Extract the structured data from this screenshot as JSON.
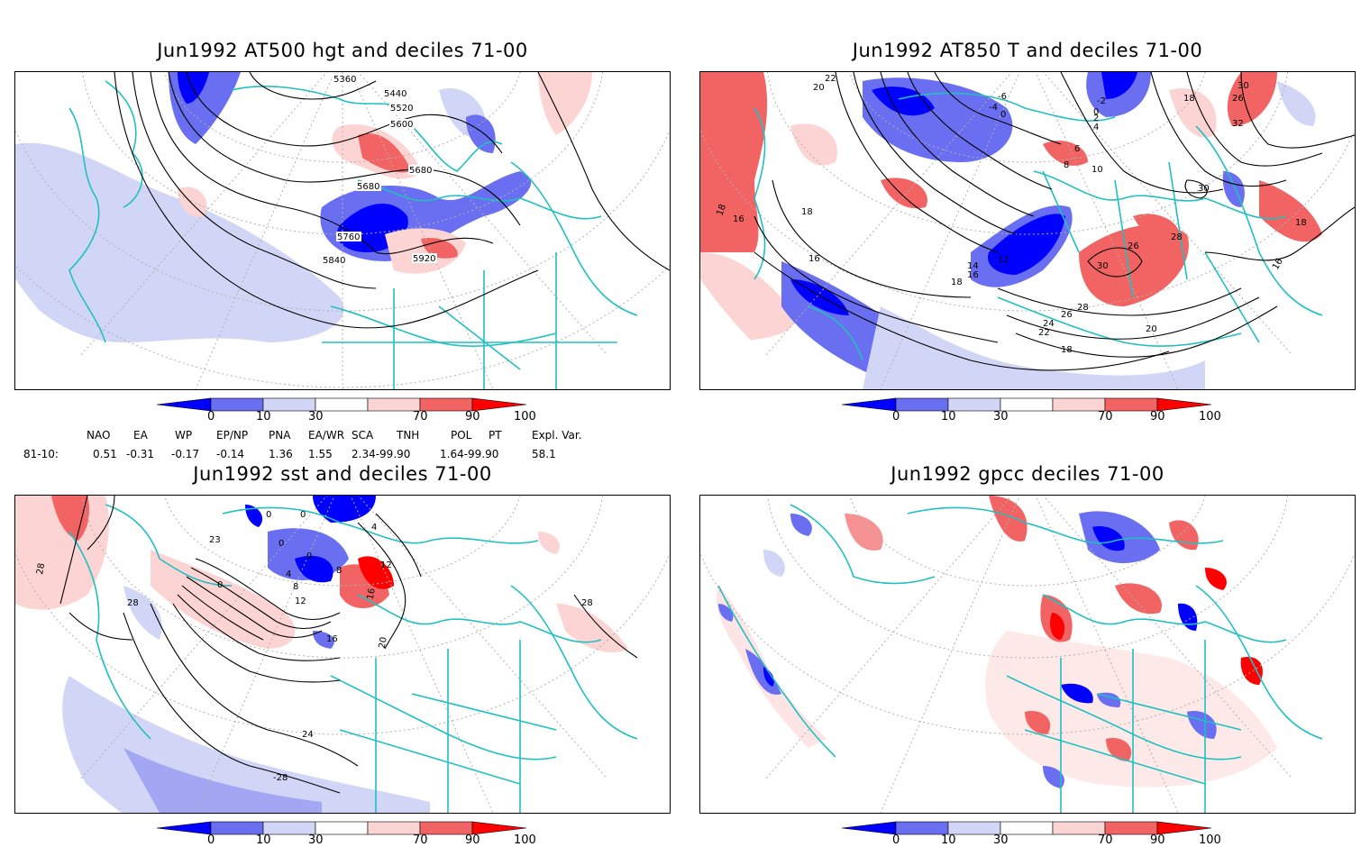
{
  "panels": [
    {
      "title": "Jun1992 AT500 hgt and deciles 71-00",
      "contour_labels": [
        "5360",
        "5440",
        "5520",
        "5600",
        "5680",
        "5680",
        "5760",
        "5840",
        "5920"
      ]
    },
    {
      "title": "Jun1992 AT850 T and deciles 71-00",
      "contour_labels": [
        "22",
        "20",
        "-6",
        "-4",
        "-2",
        "0",
        "2",
        "4",
        "0",
        "18",
        "30",
        "26",
        "32",
        "6",
        "8",
        "10",
        "30",
        "18",
        "16",
        "18",
        "16",
        "12",
        "14",
        "16",
        "18",
        "26",
        "28",
        "30",
        "28",
        "26",
        "24",
        "22",
        "20",
        "18",
        "18",
        "16"
      ]
    },
    {
      "title": "Jun1992 sst and deciles 71-00",
      "contour_labels": [
        "28",
        "23",
        "0",
        "0",
        "0",
        "0",
        "0",
        "4",
        "4",
        "8",
        "8",
        "12",
        "12",
        "16",
        "16",
        "20",
        "28",
        "24",
        "-28",
        "28"
      ]
    },
    {
      "title": "Jun1992 gpcc deciles 71-00",
      "contour_labels": []
    }
  ],
  "colorbar": {
    "ticks": [
      "0",
      "10",
      "30",
      "70",
      "90",
      "100"
    ],
    "colors": [
      "#0000ff",
      "#6a6ef0",
      "#d2d6f6",
      "#ffffff",
      "#fdd4d4",
      "#f26464",
      "#ff0000"
    ]
  },
  "indices": {
    "headers": [
      "NAO",
      "EA",
      "WP",
      "EP/NP",
      "PNA",
      "EA/WR",
      "SCA",
      "TNH",
      "POL",
      "PT",
      "Expl. Var."
    ],
    "row_label": "81-10:",
    "values": [
      "0.51",
      "-0.31",
      "-0.17",
      "-0.14",
      "1.36",
      "1.55",
      "2.34-99.90",
      "1.64-99.90",
      "58.1"
    ]
  },
  "map_colors": {
    "coast": "#20c0c0",
    "grid": "#b0b0b0",
    "contour": "#000000"
  }
}
